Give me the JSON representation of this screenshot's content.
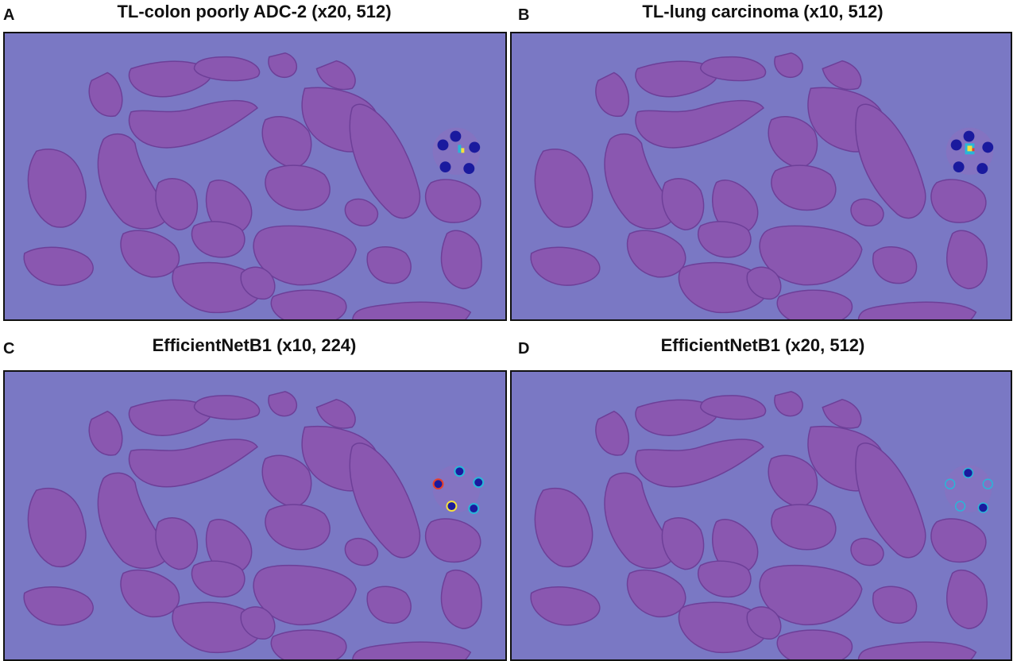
{
  "panels": [
    {
      "letter": "A",
      "title": "TL-colon poorly ADC-2 (x20, 512)",
      "heatmap_style": "solid_blobs_center_hotspot"
    },
    {
      "letter": "B",
      "title": "TL-lung carcinoma (x10, 512)",
      "heatmap_style": "solid_blobs_center_hotspot_strong"
    },
    {
      "letter": "C",
      "title": "EfficientNetB1 (x10, 224)",
      "heatmap_style": "ring_blobs_hot_edges"
    },
    {
      "letter": "D",
      "title": "EfficientNetB1 (x20, 512)",
      "heatmap_style": "ring_blobs_faint"
    }
  ],
  "colors": {
    "background": "#7a78c4",
    "tissue": "#8a57b0",
    "tissue_edge": "#6d3f98",
    "heat_cold": "#1a1a9e",
    "heat_mid": "#29b6d8",
    "heat_hot": "#f6e23c",
    "heat_max": "#e8402a"
  }
}
